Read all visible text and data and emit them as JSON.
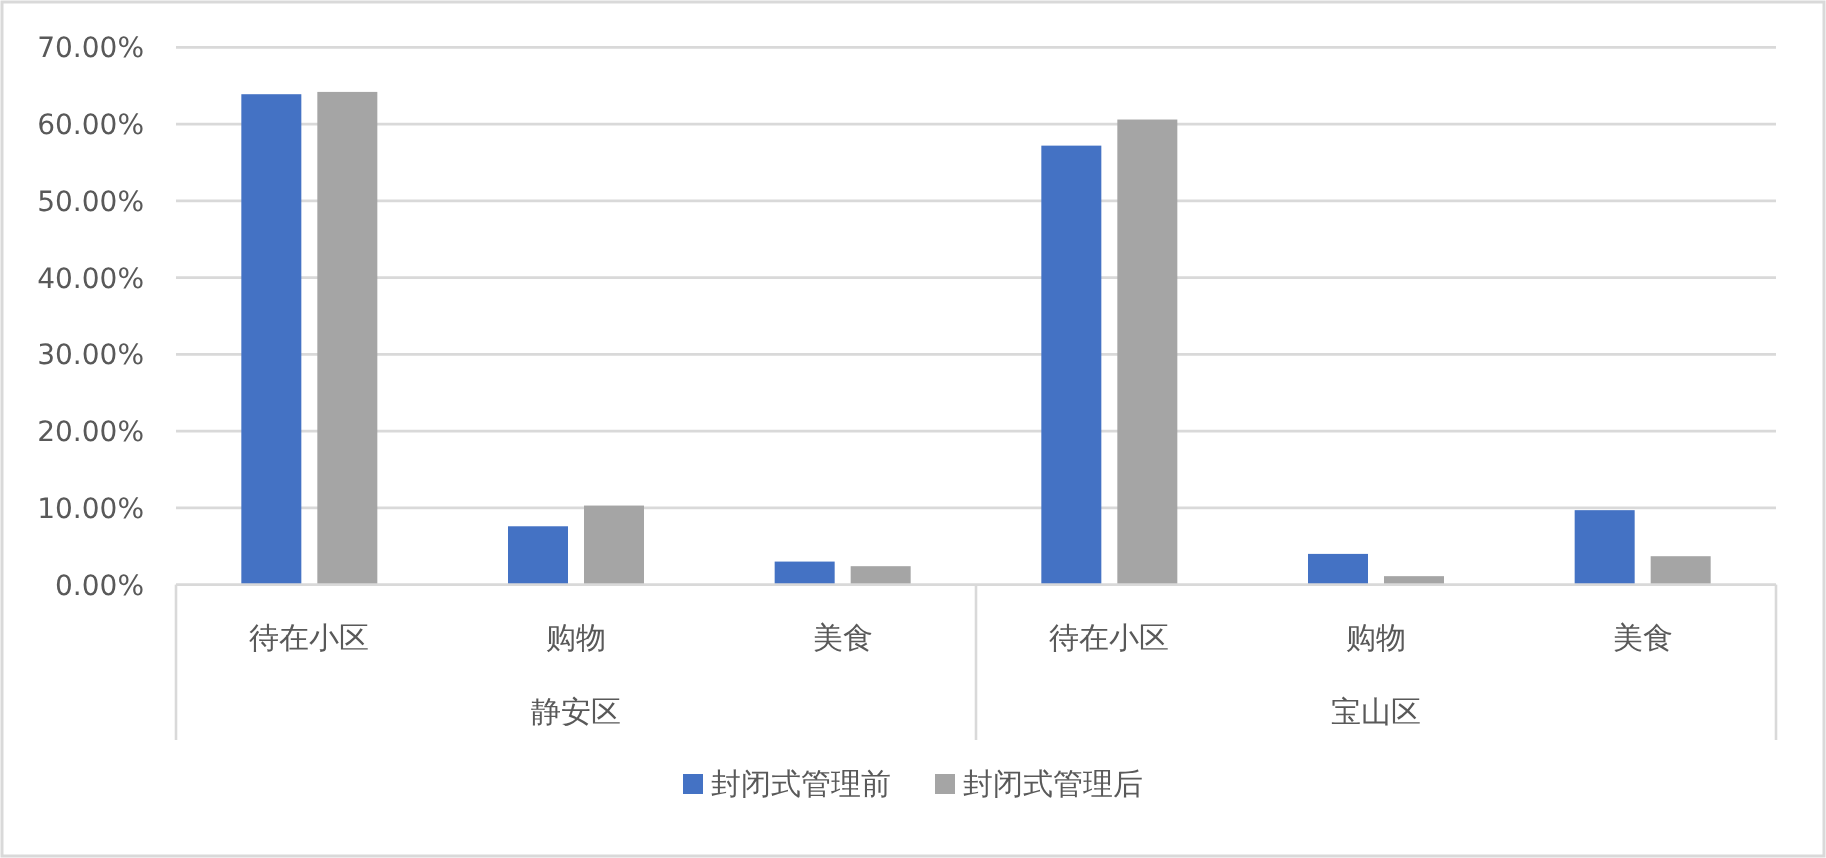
{
  "chart_data": {
    "type": "bar",
    "categories": [
      "待在小区",
      "购物",
      "美食",
      "待在小区",
      "购物",
      "美食"
    ],
    "series": [
      {
        "name": "封闭式管理前",
        "color": "#4472c4",
        "values": [
          63.9,
          7.6,
          3.0,
          57.2,
          4.0,
          9.7
        ]
      },
      {
        "name": "封闭式管理后",
        "color": "#a5a5a5",
        "values": [
          64.2,
          10.3,
          2.4,
          60.6,
          1.1,
          3.7
        ]
      }
    ],
    "annotations": [
      "静安区",
      "宝山区"
    ],
    "ylim": [
      0,
      70
    ],
    "yticks": [
      {
        "value": 0,
        "label": "0.00%"
      },
      {
        "value": 10,
        "label": "10.00%"
      },
      {
        "value": 20,
        "label": "20.00%"
      },
      {
        "value": 30,
        "label": "30.00%"
      },
      {
        "value": 40,
        "label": "40.00%"
      },
      {
        "value": 50,
        "label": "50.00%"
      },
      {
        "value": 60,
        "label": "60.00%"
      },
      {
        "value": 70,
        "label": "70.00%"
      }
    ],
    "grid": "y",
    "legend": "bottom"
  }
}
